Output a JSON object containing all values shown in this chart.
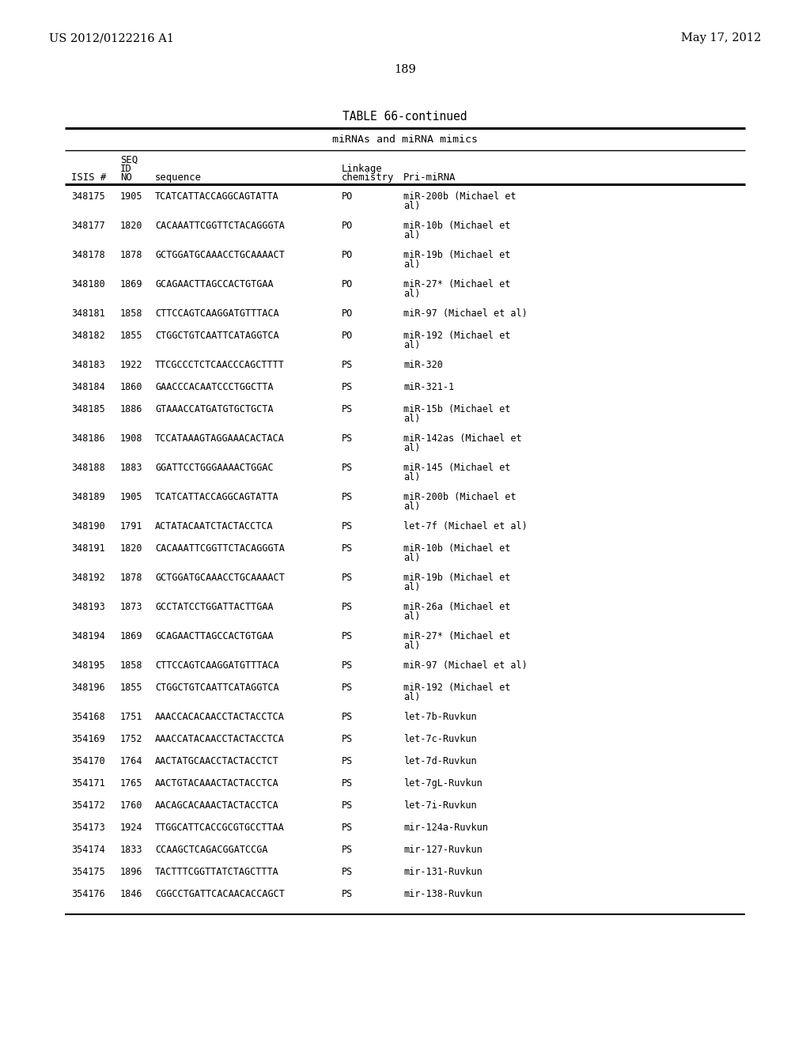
{
  "header_left": "US 2012/0122216 A1",
  "header_right": "May 17, 2012",
  "page_number": "189",
  "table_title": "TABLE 66-continued",
  "table_subtitle": "miRNAs and miRNA mimics",
  "rows": [
    [
      "348175",
      "1905",
      "TCATCATTACCAGGCAGTATTA",
      "PO",
      "miR-200b (Michael et",
      "al)"
    ],
    [
      "348177",
      "1820",
      "CACAAATTCGGTTCTACAGGGTA",
      "PO",
      "miR-10b (Michael et",
      "al)"
    ],
    [
      "348178",
      "1878",
      "GCTGGATGCAAACCTGCAAAACT",
      "PO",
      "miR-19b (Michael et",
      "al)"
    ],
    [
      "348180",
      "1869",
      "GCAGAACTTAGCCACTGTGAA",
      "PO",
      "miR-27* (Michael et",
      "al)"
    ],
    [
      "348181",
      "1858",
      "CTTCCAGTCAAGGATGTTTACA",
      "PO",
      "miR-97 (Michael et al)",
      ""
    ],
    [
      "348182",
      "1855",
      "CTGGCTGTCAATTCATAGGTCA",
      "PO",
      "miR-192 (Michael et",
      "al)"
    ],
    [
      "348183",
      "1922",
      "TTCGCCCTCTCAACCCAGCTTTT",
      "PS",
      "miR-320",
      ""
    ],
    [
      "348184",
      "1860",
      "GAACCCACAATCCCTGGCTTA",
      "PS",
      "miR-321-1",
      ""
    ],
    [
      "348185",
      "1886",
      "GTAAACCATGATGTGCTGCTA",
      "PS",
      "miR-15b (Michael et",
      "al)"
    ],
    [
      "348186",
      "1908",
      "TCCATAAAGTAGGAAACACTACA",
      "PS",
      "miR-142as (Michael et",
      "al)"
    ],
    [
      "348188",
      "1883",
      "GGATTCCTGGGAAAACTGGAC",
      "PS",
      "miR-145 (Michael et",
      "al)"
    ],
    [
      "348189",
      "1905",
      "TCATCATTACCAGGCAGTATTA",
      "PS",
      "miR-200b (Michael et",
      "al)"
    ],
    [
      "348190",
      "1791",
      "ACTATACAATCTACTACCTCA",
      "PS",
      "let-7f (Michael et al)",
      ""
    ],
    [
      "348191",
      "1820",
      "CACAAATTCGGTTCTACAGGGTA",
      "PS",
      "miR-10b (Michael et",
      "al)"
    ],
    [
      "348192",
      "1878",
      "GCTGGATGCAAACCTGCAAAACT",
      "PS",
      "miR-19b (Michael et",
      "al)"
    ],
    [
      "348193",
      "1873",
      "GCCTATCCTGGATTACTTGAA",
      "PS",
      "miR-26a (Michael et",
      "al)"
    ],
    [
      "348194",
      "1869",
      "GCAGAACTTAGCCACTGTGAA",
      "PS",
      "miR-27* (Michael et",
      "al)"
    ],
    [
      "348195",
      "1858",
      "CTTCCAGTCAAGGATGTTTACA",
      "PS",
      "miR-97 (Michael et al)",
      ""
    ],
    [
      "348196",
      "1855",
      "CTGGCTGTCAATTCATAGGTCA",
      "PS",
      "miR-192 (Michael et",
      "al)"
    ],
    [
      "354168",
      "1751",
      "AAACCACACAACCTACTACCTCA",
      "PS",
      "let-7b-Ruvkun",
      ""
    ],
    [
      "354169",
      "1752",
      "AAACCATACAACCTACTACCTCA",
      "PS",
      "let-7c-Ruvkun",
      ""
    ],
    [
      "354170",
      "1764",
      "AACTATGCAACCTACTACCTCT",
      "PS",
      "let-7d-Ruvkun",
      ""
    ],
    [
      "354171",
      "1765",
      "AACTGTACAAACTACTACCTCA",
      "PS",
      "let-7gL-Ruvkun",
      ""
    ],
    [
      "354172",
      "1760",
      "AACAGCACAAACTACTACCTCA",
      "PS",
      "let-7i-Ruvkun",
      ""
    ],
    [
      "354173",
      "1924",
      "TTGGCATTCACCGCGTGCCTTAA",
      "PS",
      "mir-124a-Ruvkun",
      ""
    ],
    [
      "354174",
      "1833",
      "CCAAGCTCAGACGGATCCGA",
      "PS",
      "mir-127-Ruvkun",
      ""
    ],
    [
      "354175",
      "1896",
      "TACTTTCGGTTATCTAGCTTTA",
      "PS",
      "mir-131-Ruvkun",
      ""
    ],
    [
      "354176",
      "1846",
      "CGGCCTGATTCACAACACCAGCT",
      "PS",
      "mir-138-Ruvkun",
      ""
    ]
  ],
  "bg_color": "#ffffff",
  "text_color": "#000000"
}
